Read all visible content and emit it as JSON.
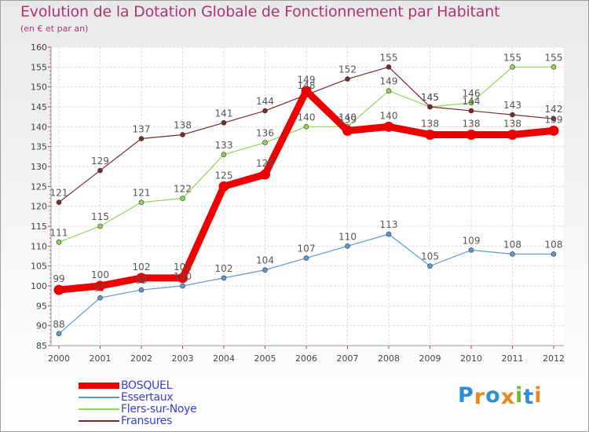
{
  "title": "Evolution de la Dotation Globale de Fonctionnement par Habitant",
  "subtitle": "(en € et par an)",
  "brand": {
    "letters": [
      "P",
      "r",
      "o",
      "x",
      "i",
      "t",
      "i"
    ],
    "colors": [
      "#2f8fd6",
      "#e8891b",
      "#2f8fd6",
      "#e8891b",
      "#6dbb2f",
      "#2f8fd6",
      "#e8891b"
    ]
  },
  "chart_data": {
    "type": "line",
    "x": [
      "2000",
      "2001",
      "2002",
      "2003",
      "2004",
      "2005",
      "2006",
      "2007",
      "2008",
      "2009",
      "2010",
      "2011",
      "2012"
    ],
    "ylim": [
      85,
      160
    ],
    "yticks": [
      85,
      90,
      95,
      100,
      105,
      110,
      115,
      120,
      125,
      130,
      135,
      140,
      145,
      150,
      155,
      160
    ],
    "grid": true,
    "legend_position": "bottom-left",
    "series": [
      {
        "name": "BOSQUEL",
        "color": "#ee0000",
        "values": [
          99,
          100,
          102,
          102,
          125,
          128,
          149,
          139,
          140,
          138,
          138,
          138,
          139
        ],
        "labels": [
          "99",
          "100",
          "102",
          "102",
          "125",
          "128",
          "149",
          "139",
          "140",
          "138",
          "138",
          "138",
          "139"
        ]
      },
      {
        "name": "Essertaux",
        "color": "#5b9bd0",
        "values": [
          88,
          97,
          99,
          100,
          102,
          104,
          107,
          110,
          113,
          105,
          109,
          108,
          108
        ],
        "labels": [
          "88",
          "97",
          "99",
          "100",
          "102",
          "104",
          "107",
          "110",
          "113",
          "105",
          "109",
          "108",
          "108"
        ]
      },
      {
        "name": "Flers-sur-Noye",
        "color": "#8fd654",
        "values": [
          111,
          115,
          121,
          122,
          133,
          136,
          140,
          140,
          149,
          145,
          146,
          155,
          155
        ],
        "labels": [
          "111",
          "115",
          "121",
          "122",
          "133",
          "136",
          "140",
          "140",
          "149",
          "145",
          "146",
          "155",
          "155"
        ]
      },
      {
        "name": "Fransures",
        "color": "#7a2a2a",
        "values": [
          121,
          129,
          137,
          138,
          141,
          144,
          148,
          152,
          155,
          145,
          144,
          143,
          142
        ],
        "labels": [
          "121",
          "129",
          "137",
          "138",
          "141",
          "144",
          "148",
          "152",
          "155",
          "145",
          "144",
          "143",
          "142"
        ]
      }
    ]
  }
}
